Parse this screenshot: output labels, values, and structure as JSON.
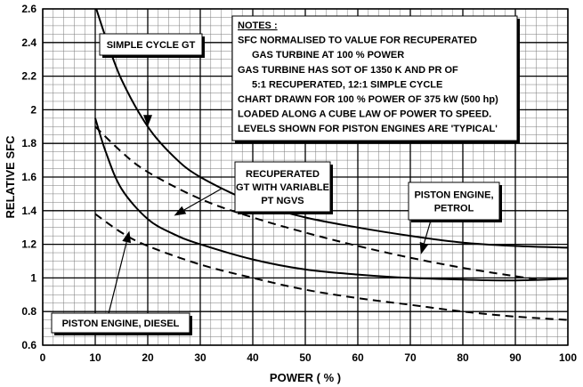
{
  "chart_data": {
    "type": "line",
    "xlabel": "POWER ( % )",
    "ylabel": "RELATIVE SFC",
    "xlim": [
      0,
      100
    ],
    "ylim": [
      0.6,
      2.6
    ],
    "x_ticks": [
      "0",
      "10",
      "20",
      "30",
      "40",
      "50",
      "60",
      "70",
      "80",
      "90",
      "100"
    ],
    "y_ticks": [
      "0.6",
      "0.8",
      "1",
      "1.2",
      "1.4",
      "1.6",
      "1.8",
      "2",
      "2.2",
      "2.4",
      "2.6"
    ],
    "grid": true,
    "notes": [
      "NOTES :",
      "SFC NORMALISED TO VALUE FOR RECUPERATED",
      "GAS TURBINE AT 100 % POWER",
      "GAS TURBINE HAS SOT OF 1350 K AND PR OF",
      "5:1 RECUPERATED, 12:1 SIMPLE CYCLE",
      "CHART DRAWN FOR 100 % POWER OF 375 kW (500 hp)",
      "LOADED ALONG A CUBE LAW OF POWER TO SPEED.",
      "LEVELS SHOWN FOR PISTON ENGINES ARE 'TYPICAL'"
    ],
    "series": [
      {
        "style": "solid",
        "x": [
          10,
          12,
          15,
          20,
          25,
          30,
          40,
          50,
          60,
          70,
          80,
          90,
          100
        ],
        "y": [
          2.62,
          2.43,
          2.18,
          1.9,
          1.72,
          1.6,
          1.45,
          1.36,
          1.3,
          1.25,
          1.21,
          1.19,
          1.18
        ]
      },
      {
        "style": "solid",
        "x": [
          10,
          12,
          15,
          20,
          25,
          30,
          40,
          50,
          60,
          70,
          80,
          90,
          100
        ],
        "y": [
          1.95,
          1.75,
          1.53,
          1.35,
          1.26,
          1.2,
          1.11,
          1.05,
          1.02,
          1.0,
          0.99,
          0.985,
          0.995
        ]
      },
      {
        "style": "dashed",
        "x": [
          10,
          15,
          20,
          30,
          40,
          50,
          60,
          70,
          80,
          90,
          95
        ],
        "y": [
          1.9,
          1.75,
          1.63,
          1.47,
          1.36,
          1.27,
          1.19,
          1.12,
          1.06,
          1.01,
          0.99
        ]
      },
      {
        "style": "dashed",
        "x": [
          10,
          15,
          20,
          30,
          40,
          50,
          60,
          70,
          80,
          90,
          100
        ],
        "y": [
          1.38,
          1.27,
          1.19,
          1.08,
          1.0,
          0.93,
          0.88,
          0.84,
          0.8,
          0.77,
          0.75
        ]
      }
    ],
    "annotations": [
      {
        "id": "simple",
        "lines": [
          "SIMPLE CYCLE GT"
        ],
        "arrow_from": [
          20,
          2.17
        ],
        "arrow_to": [
          20,
          1.9
        ]
      },
      {
        "id": "recup",
        "lines": [
          "RECUPERATED",
          "GT WITH VARIABLE",
          "PT NGVS"
        ],
        "arrow_from": [
          34,
          1.53
        ],
        "arrow_to": [
          25,
          1.37
        ]
      },
      {
        "id": "petrol",
        "lines": [
          "PISTON ENGINE,",
          "PETROL"
        ],
        "arrow_from": [
          75,
          1.46
        ],
        "arrow_to": [
          72,
          1.14
        ]
      },
      {
        "id": "diesel",
        "lines": [
          "PISTON ENGINE, DIESEL"
        ],
        "arrow_from": [
          12,
          0.72
        ],
        "arrow_to": [
          16.5,
          1.28
        ]
      }
    ]
  }
}
